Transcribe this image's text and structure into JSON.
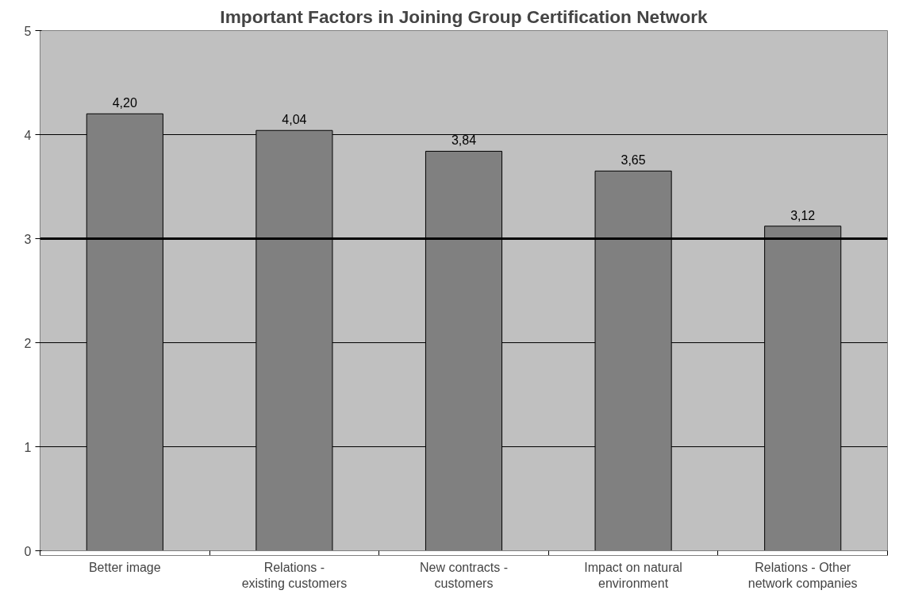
{
  "chart_data": {
    "type": "bar",
    "title": "Important Factors in Joining Group Certification Network",
    "categories": [
      "Better image",
      "Relations - existing customers",
      "New contracts - customers",
      "Impact on natural environment",
      "Relations - Other network companies"
    ],
    "values": [
      4.2,
      4.04,
      3.84,
      3.65,
      3.12
    ],
    "value_labels": [
      "4,20",
      "4,04",
      "3,84",
      "3,65",
      "3,12"
    ],
    "color": "#808080",
    "ylim": [
      0,
      5
    ],
    "yticks": [
      0,
      1,
      2,
      3,
      4,
      5
    ],
    "grid": "y",
    "ref_lines": [
      {
        "axis": "y",
        "value": 3,
        "color": "#000000"
      }
    ]
  }
}
